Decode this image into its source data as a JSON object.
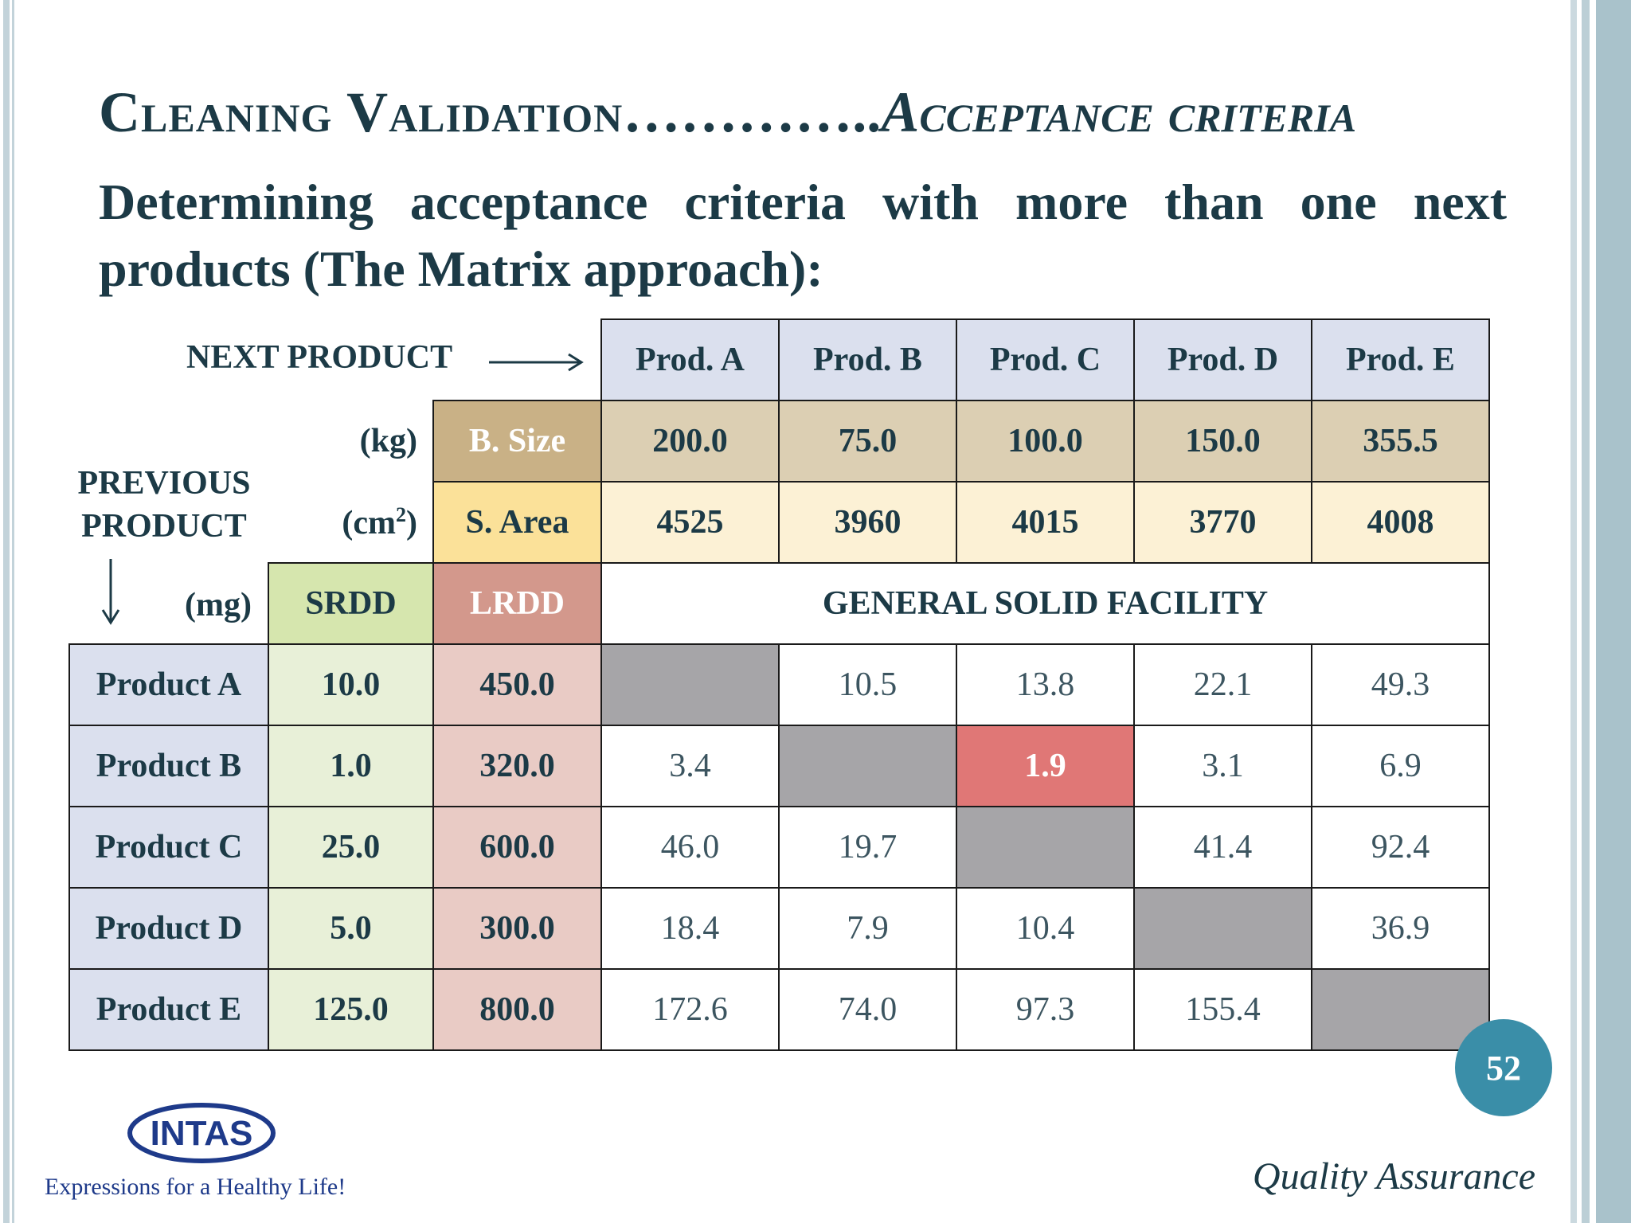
{
  "slide": {
    "title_main": "Cleaning Validation",
    "title_dots": "…………..",
    "title_sub": "Acceptance criteria",
    "subtitle": "Determining acceptance criteria with more than one next products (The Matrix approach):",
    "page_number": "52",
    "footer_right": "Quality Assurance",
    "logo_text": "INTAS",
    "tagline": "Expressions for a Healthy Life!"
  },
  "labels": {
    "next_product": "NEXT PRODUCT",
    "previous_product_line1": "PREVIOUS",
    "previous_product_line2": "PRODUCT",
    "unit_kg": "(kg)",
    "unit_cm": "(cm",
    "unit_cm_sup": "2",
    "unit_cm_close": ")",
    "unit_mg": "(mg)"
  },
  "table": {
    "next_products": [
      "Prod. A",
      "Prod. B",
      "Prod. C",
      "Prod. D",
      "Prod. E"
    ],
    "batch_size_label": "B. Size",
    "batch_sizes": [
      "200.0",
      "75.0",
      "100.0",
      "150.0",
      "355.5"
    ],
    "surface_area_label": "S. Area",
    "surface_areas": [
      "4525",
      "3960",
      "4015",
      "3770",
      "4008"
    ],
    "srdd_label": "SRDD",
    "lrdd_label": "LRDD",
    "facility_label": "GENERAL SOLID FACILITY",
    "rows": [
      {
        "product": "Product A",
        "srdd": "10.0",
        "lrdd": "450.0",
        "values": [
          "",
          "10.5",
          "13.8",
          "22.1",
          "49.3"
        ]
      },
      {
        "product": "Product B",
        "srdd": "1.0",
        "lrdd": "320.0",
        "values": [
          "3.4",
          "",
          "1.9",
          "3.1",
          "6.9"
        ]
      },
      {
        "product": "Product C",
        "srdd": "25.0",
        "lrdd": "600.0",
        "values": [
          "46.0",
          "19.7",
          "",
          "41.4",
          "92.4"
        ]
      },
      {
        "product": "Product D",
        "srdd": "5.0",
        "lrdd": "300.0",
        "values": [
          "18.4",
          "7.9",
          "10.4",
          "",
          "36.9"
        ]
      },
      {
        "product": "Product E",
        "srdd": "125.0",
        "lrdd": "800.0",
        "values": [
          "172.6",
          "74.0",
          "97.3",
          "155.4",
          ""
        ]
      }
    ],
    "highlight_color": "#e07776",
    "diagonal_color": "#a6a5a8"
  }
}
